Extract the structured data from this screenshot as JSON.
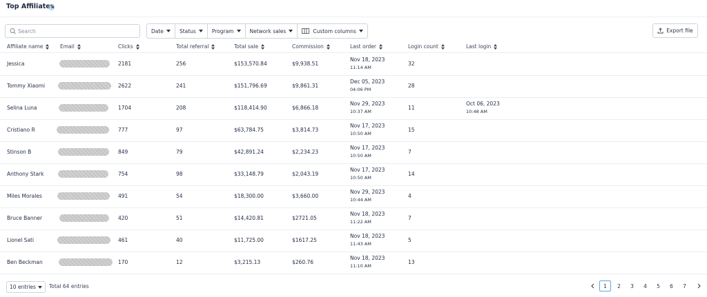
{
  "header": {
    "title": "Top Affiliates"
  },
  "search": {
    "placeholder": "Search"
  },
  "filters": [
    "Date",
    "Status",
    "Program",
    "Network sales",
    "Custom columns"
  ],
  "export": {
    "label": "Export file"
  },
  "table": {
    "columns": [
      "Affiliate name",
      "Email",
      "Clicks",
      "Total referral",
      "Total sale",
      "Commission",
      "Last order",
      "Login count",
      "Last login"
    ],
    "rows": [
      {
        "name": "Jessica",
        "clicks": "2181",
        "referral": "256",
        "sale": "$153,570.84",
        "commission": "$9,938.51",
        "order_date": "Nov 18, 2023",
        "order_time": "11:14 AM",
        "logins": "32"
      },
      {
        "name": "Tommy Xiaomi",
        "clicks": "2622",
        "referral": "241",
        "sale": "$151,796.69",
        "commission": "$9,861.31",
        "order_date": "Dec 05, 2023",
        "order_time": "04:06 PM",
        "logins": "28"
      },
      {
        "name": "Selina Luna",
        "clicks": "1704",
        "referral": "208",
        "sale": "$118,414.90",
        "commission": "$6,866.18",
        "order_date": "Nov 29, 2023",
        "order_time": "10:37 AM",
        "logins": "11",
        "login_date": "Oct 06, 2023",
        "login_time": "10:48 AM"
      },
      {
        "name": "Cristiano R",
        "clicks": "777",
        "referral": "97",
        "sale": "$63,784.75",
        "commission": "$3,814.73",
        "order_date": "Nov 17, 2023",
        "order_time": "10:50 AM",
        "logins": "15"
      },
      {
        "name": "Stinson B",
        "clicks": "849",
        "referral": "79",
        "sale": "$42,891.24",
        "commission": "$2,234.23",
        "order_date": "Nov 17, 2023",
        "order_time": "10:50 AM",
        "logins": "7"
      },
      {
        "name": "Anthony Stark",
        "clicks": "754",
        "referral": "98",
        "sale": "$33,148.79",
        "commission": "$2,043.19",
        "order_date": "Nov 17, 2023",
        "order_time": "10:50 AM",
        "logins": "14"
      },
      {
        "name": "Miles Morales",
        "clicks": "491",
        "referral": "54",
        "sale": "$18,300.00",
        "commission": "$3,660.00",
        "order_date": "Nov 29, 2023",
        "order_time": "10:44 AM",
        "logins": "4"
      },
      {
        "name": "Bruce Banner",
        "clicks": "420",
        "referral": "51",
        "sale": "$14,420.81",
        "commission": "$2721.05",
        "order_date": "Nov 18, 2023",
        "order_time": "11:22 AM",
        "logins": "7"
      },
      {
        "name": "Lionel Sati",
        "clicks": "461",
        "referral": "40",
        "sale": "$11,725.00",
        "commission": "$1617.25",
        "order_date": "Nov 18, 2023",
        "order_time": "11:43 AM",
        "logins": "5"
      },
      {
        "name": "Ben Beckman",
        "clicks": "170",
        "referral": "12",
        "sale": "$3,215.13",
        "commission": "$260.76",
        "order_date": "Nov 18, 2023",
        "order_time": "11:10 AM",
        "logins": "13"
      }
    ]
  },
  "footer": {
    "page_size": "10 entries",
    "total": "Total 64 entries",
    "pages": [
      "1",
      "2",
      "3",
      "4",
      "5",
      "6",
      "7"
    ]
  }
}
